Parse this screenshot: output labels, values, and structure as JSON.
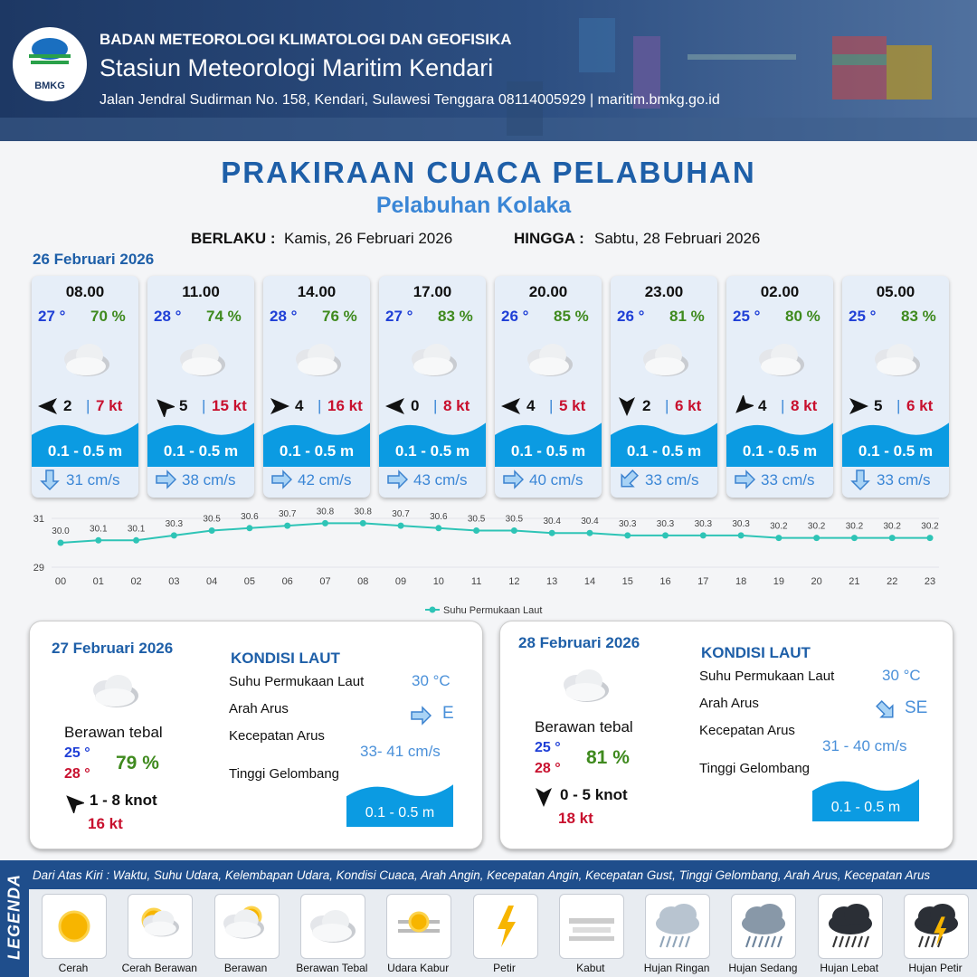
{
  "header": {
    "logo": "BMKG",
    "agency": "BADAN METEOROLOGI KLIMATOLOGI DAN GEOFISIKA",
    "station": "Stasiun Meteorologi Maritim Kendari",
    "address": "Jalan Jendral Sudirman No. 158, Kendari, Sulawesi Tenggara  08114005929 | maritim.bmkg.go.id"
  },
  "title": "PRAKIRAAN CUACA PELABUHAN",
  "subtitle": "Pelabuhan Kolaka",
  "validity": {
    "from_label": "BERLAKU :",
    "from": "Kamis, 26 Februari 2026",
    "to_label": "HINGGA :",
    "to": "Sabtu, 28 Februari 2026"
  },
  "day1": {
    "date": "26 Februari 2026",
    "separator": "|",
    "forecasts": [
      {
        "time": "08.00",
        "temp": "27 °",
        "humidity": "70 %",
        "wind": "2",
        "gust": "7 kt",
        "wave": "0.1 - 0.5 m",
        "current": "31 cm/s"
      },
      {
        "time": "11.00",
        "temp": "28 °",
        "humidity": "74 %",
        "wind": "5",
        "gust": "15 kt",
        "wave": "0.1 - 0.5 m",
        "current": "38 cm/s"
      },
      {
        "time": "14.00",
        "temp": "28 °",
        "humidity": "76 %",
        "wind": "4",
        "gust": "16 kt",
        "wave": "0.1 - 0.5 m",
        "current": "42 cm/s"
      },
      {
        "time": "17.00",
        "temp": "27 °",
        "humidity": "83 %",
        "wind": "0",
        "gust": "8 kt",
        "wave": "0.1 - 0.5 m",
        "current": "43 cm/s"
      },
      {
        "time": "20.00",
        "temp": "26 °",
        "humidity": "85 %",
        "wind": "4",
        "gust": "5 kt",
        "wave": "0.1 - 0.5 m",
        "current": "40 cm/s"
      },
      {
        "time": "23.00",
        "temp": "26 °",
        "humidity": "81 %",
        "wind": "2",
        "gust": "6 kt",
        "wave": "0.1 - 0.5 m",
        "current": "33 cm/s"
      },
      {
        "time": "02.00",
        "temp": "25 °",
        "humidity": "80 %",
        "wind": "4",
        "gust": "8 kt",
        "wave": "0.1 - 0.5 m",
        "current": "33 cm/s"
      },
      {
        "time": "05.00",
        "temp": "25 °",
        "humidity": "83 %",
        "wind": "5",
        "gust": "6 kt",
        "wave": "0.1 - 0.5 m",
        "current": "33 cm/s"
      }
    ]
  },
  "chart_data": {
    "type": "line",
    "categories": [
      "00",
      "01",
      "02",
      "03",
      "04",
      "05",
      "06",
      "07",
      "08",
      "09",
      "10",
      "11",
      "12",
      "13",
      "14",
      "15",
      "16",
      "17",
      "18",
      "19",
      "20",
      "21",
      "22",
      "23"
    ],
    "series": [
      {
        "name": "Suhu Permukaan Laut",
        "color": "#2ec4b6",
        "values": [
          30.0,
          30.1,
          30.1,
          30.3,
          30.5,
          30.6,
          30.7,
          30.8,
          30.8,
          30.7,
          30.6,
          30.5,
          30.5,
          30.4,
          30.4,
          30.3,
          30.3,
          30.3,
          30.3,
          30.2,
          30.2,
          30.2,
          30.2,
          30.2
        ],
        "value_labels": [
          "30.0",
          "30.1",
          "30.1",
          "30.3",
          "30.5",
          "30.6",
          "30.7",
          "30.8",
          "30.8",
          "30.7",
          "30.6",
          "30.5",
          "30.5",
          "30.4",
          "30.4",
          "30.3",
          "30.3",
          "30.3",
          "30.3",
          "30.2",
          "30.2",
          "30.2",
          "30.2",
          "30.2"
        ]
      }
    ],
    "ylim": [
      29,
      31
    ],
    "yticks": [
      29,
      31
    ],
    "grid": true,
    "legend": "bottom"
  },
  "days": [
    {
      "date": "27 Februari 2026",
      "condition": "Berawan tebal",
      "temp_min": "25 °",
      "temp_max": "28 °",
      "humidity": "79 %",
      "wind": "1 - 8 knot",
      "gust": "16 kt",
      "sea_title": "KONDISI LAUT",
      "sea": [
        {
          "label": "Suhu Permukaan Laut",
          "value": "30 °C"
        },
        {
          "label": "Arah Arus",
          "value": "E"
        },
        {
          "label": "Kecepatan Arus",
          "value": "33- 41 cm/s"
        },
        {
          "label": "Tinggi Gelombang",
          "value": "0.1 - 0.5 m"
        }
      ]
    },
    {
      "date": "28 Februari 2026",
      "condition": "Berawan tebal",
      "temp_min": "25 °",
      "temp_max": "28 °",
      "humidity": "81 %",
      "wind": "0 - 5 knot",
      "gust": "18 kt",
      "sea_title": "KONDISI LAUT",
      "sea": [
        {
          "label": "Suhu Permukaan Laut",
          "value": "30 °C"
        },
        {
          "label": "Arah Arus",
          "value": "SE"
        },
        {
          "label": "Kecepatan Arus",
          "value": "31 - 40 cm/s"
        },
        {
          "label": "Tinggi Gelombang",
          "value": "0.1 - 0.5 m"
        }
      ]
    }
  ],
  "legend": {
    "label": "LEGENDA",
    "description": "Dari Atas Kiri : Waktu, Suhu Udara, Kelembapan Udara, Kondisi Cuaca, Arah Angin, Kecepatan Angin, Kecepatan Gust, Tinggi Gelombang, Arah Arus, Kecepatan Arus",
    "items": [
      "Cerah",
      "Cerah Berawan",
      "Berawan",
      "Berawan Tebal",
      "Udara Kabur",
      "Petir",
      "Kabut",
      "Hujan Ringan",
      "Hujan Sedang",
      "Hujan Lebat",
      "Hujan Petir"
    ]
  }
}
